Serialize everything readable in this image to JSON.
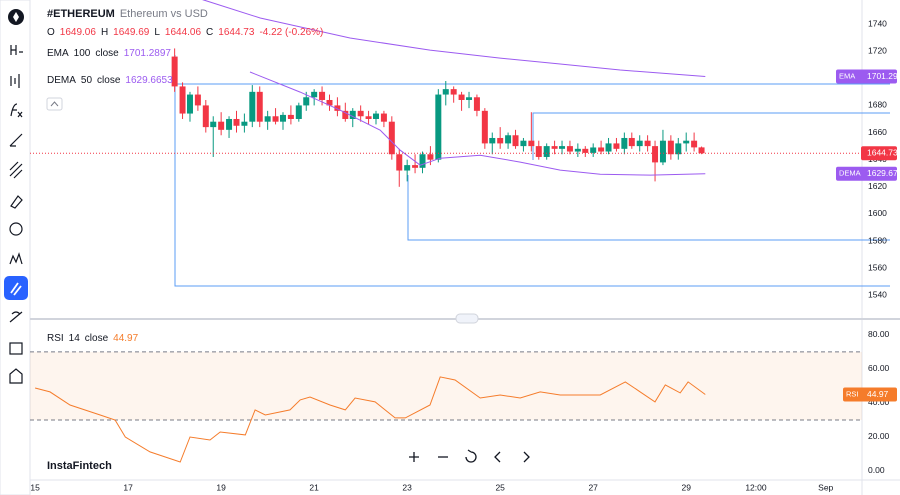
{
  "watermark": "InstaFintech",
  "chart_data": [
    {
      "type": "candlestick",
      "title": "#ETHEREUM",
      "subtitle": "Ethereum vs USD",
      "ohlc_labels": [
        "O",
        "H",
        "L",
        "C"
      ],
      "change": "-4.22 (-0.26%)",
      "up_color": "#089981",
      "down_color": "#f23645",
      "x": [
        18,
        18.17,
        18.33,
        18.5,
        18.67,
        18.83,
        19,
        19.17,
        19.33,
        19.5,
        19.67,
        19.83,
        20,
        20.17,
        20.33,
        20.5,
        20.67,
        20.83,
        21,
        21.17,
        21.33,
        21.5,
        21.67,
        21.83,
        22,
        22.17,
        22.33,
        22.5,
        22.67,
        22.83,
        23,
        23.17,
        23.33,
        23.5,
        23.67,
        23.83,
        24,
        24.17,
        24.33,
        24.5,
        24.67,
        24.83,
        25,
        25.17,
        25.33,
        25.5,
        25.67,
        25.83,
        26,
        26.17,
        26.33,
        26.5,
        26.67,
        26.83,
        27,
        27.17,
        27.33,
        27.5,
        27.67,
        27.83,
        28,
        28.17,
        28.33,
        28.5,
        28.67,
        28.83,
        29,
        29.17,
        29.33
      ],
      "open": [
        1716,
        1694,
        1674,
        1688,
        1680,
        1664,
        1668,
        1662,
        1670,
        1665,
        1668,
        1690,
        1668,
        1672,
        1668,
        1673,
        1670,
        1680,
        1686,
        1690,
        1684,
        1680,
        1676,
        1670,
        1676,
        1672,
        1670,
        1674,
        1668,
        1644,
        1632,
        1636,
        1634,
        1644,
        1640,
        1688,
        1692,
        1688,
        1684,
        1686,
        1676,
        1652,
        1656,
        1652,
        1658,
        1650,
        1654,
        1650,
        1642,
        1650,
        1648,
        1650,
        1646,
        1648,
        1645,
        1649,
        1646,
        1652,
        1648,
        1656,
        1650,
        1654,
        1650,
        1638,
        1654,
        1644,
        1652,
        1654,
        1649.06
      ],
      "high": [
        1722,
        1697,
        1690,
        1694,
        1684,
        1672,
        1675,
        1672,
        1676,
        1674,
        1695,
        1694,
        1676,
        1678,
        1675,
        1680,
        1682,
        1690,
        1692,
        1694,
        1688,
        1686,
        1682,
        1678,
        1680,
        1676,
        1676,
        1676,
        1672,
        1648,
        1640,
        1644,
        1646,
        1650,
        1692,
        1698,
        1694,
        1690,
        1690,
        1688,
        1678,
        1660,
        1664,
        1660,
        1662,
        1656,
        1675,
        1654,
        1652,
        1654,
        1654,
        1654,
        1652,
        1650,
        1652,
        1654,
        1656,
        1656,
        1660,
        1660,
        1658,
        1658,
        1654,
        1662,
        1658,
        1656,
        1660,
        1660,
        1649.69
      ],
      "low": [
        1690,
        1670,
        1668,
        1676,
        1660,
        1642,
        1658,
        1656,
        1660,
        1660,
        1664,
        1664,
        1662,
        1666,
        1662,
        1666,
        1668,
        1676,
        1680,
        1680,
        1676,
        1672,
        1668,
        1664,
        1668,
        1666,
        1666,
        1664,
        1640,
        1620,
        1624,
        1630,
        1630,
        1636,
        1638,
        1680,
        1682,
        1676,
        1678,
        1672,
        1648,
        1644,
        1648,
        1648,
        1648,
        1646,
        1646,
        1640,
        1640,
        1644,
        1644,
        1644,
        1642,
        1642,
        1642,
        1644,
        1644,
        1646,
        1644,
        1648,
        1646,
        1646,
        1624,
        1636,
        1640,
        1640,
        1646,
        1646,
        1644.06
      ],
      "close": [
        1694,
        1674,
        1688,
        1680,
        1664,
        1668,
        1662,
        1670,
        1665,
        1668,
        1690,
        1668,
        1672,
        1668,
        1673,
        1670,
        1680,
        1686,
        1690,
        1684,
        1680,
        1676,
        1670,
        1676,
        1672,
        1670,
        1674,
        1668,
        1644,
        1632,
        1636,
        1634,
        1644,
        1640,
        1688,
        1692,
        1688,
        1684,
        1686,
        1676,
        1652,
        1656,
        1652,
        1658,
        1650,
        1654,
        1650,
        1642,
        1650,
        1648,
        1650,
        1646,
        1648,
        1645,
        1649,
        1646,
        1652,
        1648,
        1656,
        1650,
        1654,
        1650,
        1638,
        1654,
        1644,
        1652,
        1654,
        1649.06,
        1644.73
      ],
      "indicators": [
        {
          "name": "EMA",
          "length": 100,
          "source": "close",
          "color": "#9c5bf0",
          "x": [
            18.6,
            19.84,
            21.77,
            23.49,
            25,
            26.29,
            27.58,
            29.41
          ],
          "values": [
            1758,
            1744.4,
            1729.7,
            1720.8,
            1714.9,
            1710.5,
            1706.1,
            1701.2897
          ],
          "value_label": "1701.29"
        },
        {
          "name": "DEMA",
          "length": 50,
          "source": "close",
          "color": "#9c5bf0",
          "x": [
            19.62,
            20.7,
            21.56,
            22.42,
            22.85,
            23.28,
            23.71,
            24.57,
            25.43,
            26.29,
            27.15,
            28.23,
            29.41
          ],
          "values": [
            1704.6,
            1689.8,
            1676.5,
            1661.7,
            1647,
            1635.9,
            1641.1,
            1643.3,
            1638.2,
            1632.3,
            1629.3,
            1628.6,
            1629.6653
          ],
          "value_label": "1629.67"
        }
      ],
      "xlim": [
        14.89,
        32.78
      ],
      "xticks": [
        15,
        17,
        19,
        21,
        23,
        25,
        27,
        29,
        {
          "value": 30.5,
          "label": "12:00"
        },
        {
          "value": 32,
          "label": "Sep"
        }
      ],
      "ylim": [
        1523.3,
        1757.7
      ],
      "yticks": [
        1540,
        1560,
        1580,
        1600,
        1620,
        1640,
        1660,
        1680,
        1700,
        1720,
        1740
      ]
    },
    {
      "type": "line",
      "name": "RSI",
      "length": 14,
      "source": "close",
      "color": "#f57c2b",
      "x": [
        15,
        15.32,
        15.75,
        16.4,
        16.72,
        16.94,
        17.47,
        18.12,
        18.33,
        18.76,
        18.98,
        19.52,
        19.73,
        19.95,
        20.48,
        20.7,
        20.91,
        21.34,
        21.67,
        21.88,
        22.31,
        22.74,
        22.96,
        23.49,
        23.71,
        24.03,
        24.57,
        25,
        25.43,
        25.86,
        26.29,
        27.15,
        27.69,
        28.01,
        28.33,
        28.55,
        28.87,
        29.04,
        29.41
      ],
      "values": [
        48.8,
        46.5,
        38.8,
        32.9,
        30,
        20,
        11.2,
        5.3,
        20,
        18.2,
        22.9,
        21.2,
        35.9,
        32.9,
        35.9,
        41.8,
        43.5,
        38.8,
        35.9,
        42.9,
        40.6,
        31.2,
        31.2,
        38.8,
        55.3,
        53.5,
        42.9,
        44.7,
        42.9,
        46.5,
        44.7,
        44.7,
        52.4,
        46.5,
        40.6,
        50.6,
        45.9,
        52.4,
        44.97
      ],
      "bands": [
        70,
        30
      ],
      "band_color": "#f57c2b",
      "xlim": [
        14.89,
        32.78
      ],
      "ylim": [
        -5.3,
        87.6
      ],
      "yticks": [
        {
          "value": 0,
          "label": "0.00"
        },
        {
          "value": 20,
          "label": "20.00"
        },
        {
          "value": 40,
          "label": "40.00"
        },
        {
          "value": 60,
          "label": "60.00"
        },
        {
          "value": 80,
          "label": "80.00"
        }
      ]
    }
  ]
}
